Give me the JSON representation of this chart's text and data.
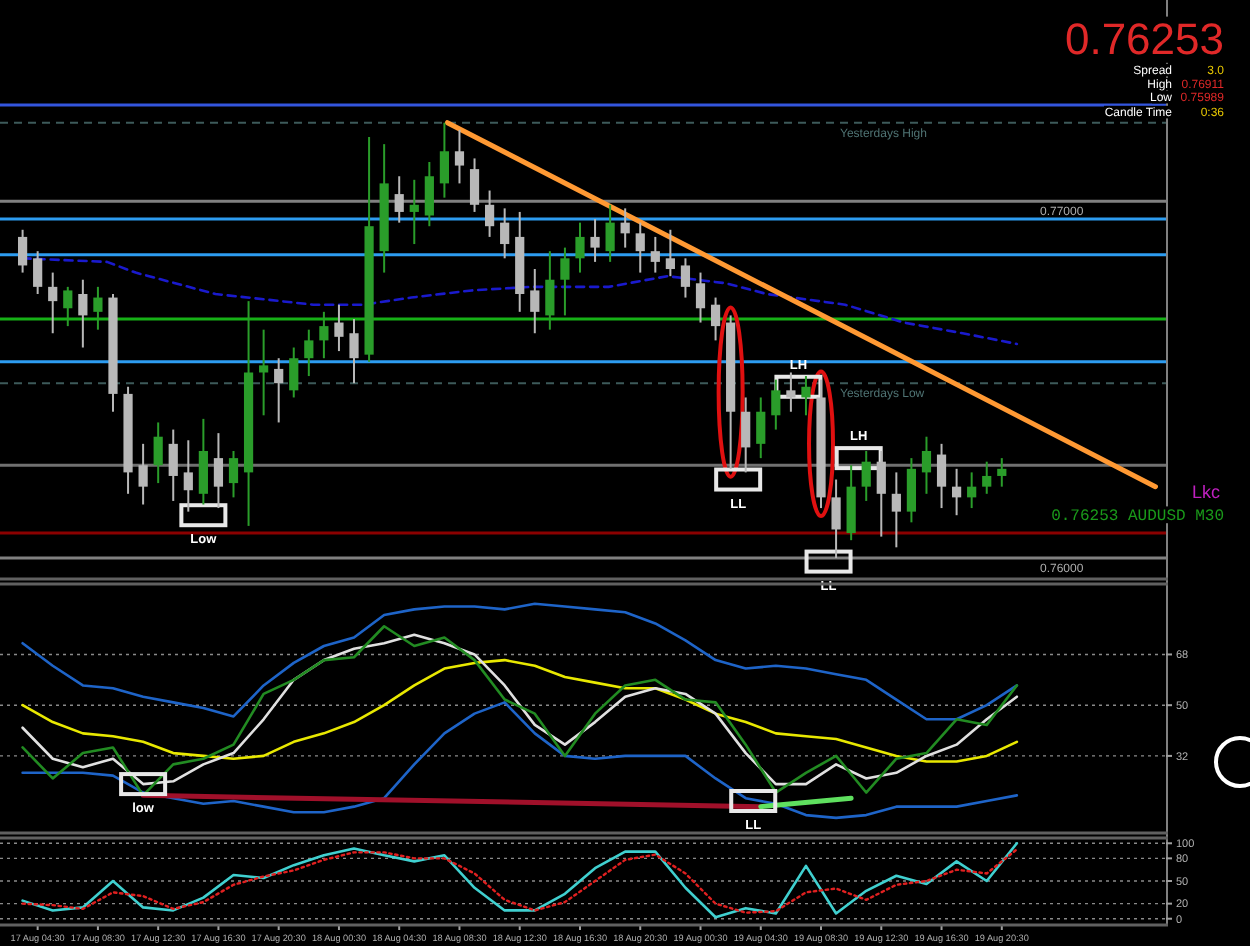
{
  "chart_data": [
    {
      "type": "candlestick",
      "tick_labels": false,
      "xlim": [
        "--08-17T02:00",
        "--08-20T07:24"
      ],
      "ylim": [
        0.75944,
        0.77564
      ],
      "x": [
        "--08-17T03:30",
        "--08-17T04:30",
        "--08-17T05:30",
        "--08-17T06:30",
        "--08-17T07:30",
        "--08-17T08:30",
        "--08-17T09:30",
        "--08-17T10:30",
        "--08-17T11:30",
        "--08-17T12:30",
        "--08-17T13:30",
        "--08-17T14:30",
        "--08-17T15:30",
        "--08-17T16:30",
        "--08-17T17:30",
        "--08-17T18:30",
        "--08-17T19:30",
        "--08-17T20:30",
        "--08-17T21:30",
        "--08-17T22:30",
        "--08-17T23:30",
        "--08-18T00:30",
        "--08-18T01:30",
        "--08-18T02:30",
        "--08-18T03:30",
        "--08-18T04:30",
        "--08-18T05:30",
        "--08-18T06:30",
        "--08-18T07:30",
        "--08-18T08:30",
        "--08-18T09:30",
        "--08-18T10:30",
        "--08-18T11:30",
        "--08-18T12:30",
        "--08-18T13:30",
        "--08-18T14:30",
        "--08-18T15:30",
        "--08-18T16:30",
        "--08-18T17:30",
        "--08-18T18:30",
        "--08-18T19:30",
        "--08-18T20:30",
        "--08-18T21:30",
        "--08-18T22:30",
        "--08-18T23:30",
        "--08-19T00:30",
        "--08-19T01:30",
        "--08-19T02:30",
        "--08-19T03:30",
        "--08-19T04:30",
        "--08-19T05:30",
        "--08-19T06:30",
        "--08-19T07:30",
        "--08-19T08:30",
        "--08-19T09:30",
        "--08-19T10:30",
        "--08-19T11:30",
        "--08-19T12:30",
        "--08-19T13:30",
        "--08-19T14:30",
        "--08-19T15:30",
        "--08-19T16:30",
        "--08-19T17:30",
        "--08-19T18:30",
        "--08-19T19:30",
        "--08-19T20:30"
      ],
      "ohlc": [
        [
          0.769,
          0.7692,
          0.768,
          0.7682
        ],
        [
          0.7684,
          0.7686,
          0.7674,
          0.7676
        ],
        [
          0.7676,
          0.768,
          0.7663,
          0.7672
        ],
        [
          0.767,
          0.7676,
          0.7665,
          0.7675
        ],
        [
          0.7674,
          0.7678,
          0.7659,
          0.7668
        ],
        [
          0.7669,
          0.7676,
          0.7664,
          0.7673
        ],
        [
          0.7673,
          0.7674,
          0.7641,
          0.7646
        ],
        [
          0.7646,
          0.7648,
          0.7618,
          0.7624
        ],
        [
          0.7626,
          0.7632,
          0.7615,
          0.762
        ],
        [
          0.7626,
          0.7638,
          0.7621,
          0.7634
        ],
        [
          0.7632,
          0.7636,
          0.7616,
          0.7623
        ],
        [
          0.7624,
          0.7633,
          0.7613,
          0.7619
        ],
        [
          0.7618,
          0.7639,
          0.7615,
          0.763
        ],
        [
          0.7628,
          0.7635,
          0.7614,
          0.762
        ],
        [
          0.7621,
          0.763,
          0.7617,
          0.7628
        ],
        [
          0.7624,
          0.7672,
          0.7609,
          0.7652
        ],
        [
          0.7652,
          0.7664,
          0.764,
          0.7654
        ],
        [
          0.7653,
          0.7656,
          0.7638,
          0.7649
        ],
        [
          0.7647,
          0.7659,
          0.7645,
          0.7656
        ],
        [
          0.7656,
          0.7664,
          0.7651,
          0.7661
        ],
        [
          0.7661,
          0.7669,
          0.7656,
          0.7665
        ],
        [
          0.7666,
          0.7671,
          0.7658,
          0.7662
        ],
        [
          0.7663,
          0.7667,
          0.7649,
          0.7656
        ],
        [
          0.7657,
          0.7718,
          0.7655,
          0.7693
        ],
        [
          0.7686,
          0.7716,
          0.768,
          0.7705
        ],
        [
          0.7702,
          0.7707,
          0.7694,
          0.7697
        ],
        [
          0.7697,
          0.7706,
          0.7688,
          0.7699
        ],
        [
          0.7696,
          0.7711,
          0.7693,
          0.7707
        ],
        [
          0.7705,
          0.7722,
          0.7701,
          0.7714
        ],
        [
          0.7714,
          0.772,
          0.7705,
          0.771
        ],
        [
          0.7709,
          0.7712,
          0.7697,
          0.7699
        ],
        [
          0.7699,
          0.7703,
          0.769,
          0.7693
        ],
        [
          0.7694,
          0.7698,
          0.7684,
          0.7688
        ],
        [
          0.769,
          0.7697,
          0.7669,
          0.7674
        ],
        [
          0.7675,
          0.7681,
          0.7663,
          0.7669
        ],
        [
          0.7668,
          0.7686,
          0.7664,
          0.7678
        ],
        [
          0.7678,
          0.7687,
          0.7668,
          0.7684
        ],
        [
          0.7684,
          0.7694,
          0.768,
          0.769
        ],
        [
          0.769,
          0.7695,
          0.7683,
          0.7687
        ],
        [
          0.7686,
          0.7699,
          0.7683,
          0.7694
        ],
        [
          0.7694,
          0.7698,
          0.7687,
          0.7691
        ],
        [
          0.7691,
          0.7694,
          0.768,
          0.7686
        ],
        [
          0.7686,
          0.769,
          0.768,
          0.7683
        ],
        [
          0.7684,
          0.7692,
          0.7679,
          0.7681
        ],
        [
          0.7682,
          0.7684,
          0.7673,
          0.7676
        ],
        [
          0.7677,
          0.768,
          0.7666,
          0.767
        ],
        [
          0.7671,
          0.7673,
          0.7661,
          0.7665
        ],
        [
          0.7666,
          0.7668,
          0.7625,
          0.7641
        ],
        [
          0.7641,
          0.7645,
          0.7624,
          0.7631
        ],
        [
          0.7632,
          0.7645,
          0.7628,
          0.7641
        ],
        [
          0.764,
          0.765,
          0.7636,
          0.7647
        ],
        [
          0.7647,
          0.7652,
          0.7641,
          0.7645
        ],
        [
          0.7645,
          0.7651,
          0.764,
          0.7648
        ],
        [
          0.7645,
          0.765,
          0.7614,
          0.7617
        ],
        [
          0.7617,
          0.7622,
          0.76,
          0.7608
        ],
        [
          0.7607,
          0.7626,
          0.7605,
          0.762
        ],
        [
          0.762,
          0.763,
          0.7616,
          0.7627
        ],
        [
          0.7627,
          0.763,
          0.7606,
          0.7618
        ],
        [
          0.7618,
          0.7624,
          0.7603,
          0.7613
        ],
        [
          0.7613,
          0.7628,
          0.761,
          0.7625
        ],
        [
          0.7624,
          0.7634,
          0.7618,
          0.763
        ],
        [
          0.7629,
          0.7632,
          0.7614,
          0.762
        ],
        [
          0.762,
          0.7625,
          0.7612,
          0.7617
        ],
        [
          0.7617,
          0.7624,
          0.7614,
          0.762
        ],
        [
          0.762,
          0.7627,
          0.7618,
          0.7623
        ],
        [
          0.7623,
          0.7628,
          0.762,
          0.7625
        ]
      ],
      "colors": [
        "#b8b8b8",
        "#b8b8b8",
        "#b8b8b8",
        "#2a9d2a",
        "#b8b8b8",
        "#2a9d2a",
        "#b8b8b8",
        "#b8b8b8",
        "#b8b8b8",
        "#2a9d2a",
        "#b8b8b8",
        "#b8b8b8",
        "#2a9d2a",
        "#b8b8b8",
        "#2a9d2a",
        "#2a9d2a",
        "#2a9d2a",
        "#b8b8b8",
        "#2a9d2a",
        "#2a9d2a",
        "#2a9d2a",
        "#b8b8b8",
        "#b8b8b8",
        "#2a9d2a",
        "#2a9d2a",
        "#b8b8b8",
        "#2a9d2a",
        "#2a9d2a",
        "#2a9d2a",
        "#b8b8b8",
        "#b8b8b8",
        "#b8b8b8",
        "#b8b8b8",
        "#b8b8b8",
        "#b8b8b8",
        "#2a9d2a",
        "#2a9d2a",
        "#2a9d2a",
        "#b8b8b8",
        "#2a9d2a",
        "#b8b8b8",
        "#b8b8b8",
        "#b8b8b8",
        "#b8b8b8",
        "#b8b8b8",
        "#b8b8b8",
        "#b8b8b8",
        "#b8b8b8",
        "#b8b8b8",
        "#2a9d2a",
        "#2a9d2a",
        "#b8b8b8",
        "#2a9d2a",
        "#b8b8b8",
        "#b8b8b8",
        "#2a9d2a",
        "#2a9d2a",
        "#b8b8b8",
        "#b8b8b8",
        "#2a9d2a",
        "#2a9d2a",
        "#b8b8b8",
        "#b8b8b8",
        "#2a9d2a",
        "#2a9d2a",
        "#2a9d2a"
      ],
      "series": [
        {
          "type": "line",
          "x": [
            "--08-17T03:30",
            "--08-17T09:06",
            "--08-17T11:00",
            "--08-17T16:18",
            "--08-17T22:48",
            "--08-18T02:06",
            "--08-18T05:18",
            "--08-18T09:18",
            "--08-18T13:12",
            "--08-18T18:24",
            "--08-18T22:18",
            "--08-19T02:12",
            "--08-19T04:54",
            "--08-19T10:06",
            "--08-19T14:00",
            "--08-19T17:54",
            "--08-19T21:30"
          ],
          "values": [
            0.7684,
            0.7683,
            0.768,
            0.7674,
            0.7671,
            0.7671,
            0.7673,
            0.7675,
            0.7676,
            0.7676,
            0.7679,
            0.7677,
            0.7674,
            0.7671,
            0.7666,
            0.7663,
            0.766
          ],
          "color": "#1a1acd",
          "line_style": "dashed"
        },
        {
          "type": "line",
          "x": [
            "--08-18T07:42",
            "--08-20T06:42"
          ],
          "values": [
            0.7722,
            0.762
          ],
          "color": "#ff9933"
        }
      ],
      "ref_lines": [
        {
          "axis": "y",
          "value": 0.7727,
          "color": "#3355dd"
        },
        {
          "axis": "y",
          "value": 0.7722,
          "label": "Yesterdays High",
          "color": "#3d5a5a",
          "line_style": "dashed"
        },
        {
          "axis": "y",
          "value": 0.77,
          "label": "0.77000",
          "color": "#808080"
        },
        {
          "axis": "y",
          "value": 0.7695,
          "color": "#2d9cf0"
        },
        {
          "axis": "y",
          "value": 0.7685,
          "color": "#2d9cf0"
        },
        {
          "axis": "y",
          "value": 0.7667,
          "color": "#16b016"
        },
        {
          "axis": "y",
          "value": 0.7655,
          "color": "#2d9cf0"
        },
        {
          "axis": "y",
          "value": 0.7649,
          "label": "Yesterdays Low",
          "color": "#3d5a5a",
          "line_style": "dashed"
        },
        {
          "axis": "y",
          "value": 0.7626,
          "color": "#707070"
        },
        {
          "axis": "y",
          "value": 0.7607,
          "color": "#8b0000"
        },
        {
          "axis": "y",
          "value": 0.76,
          "label": "0.76000",
          "color": "#808080"
        }
      ],
      "annotations": [
        {
          "text": "Low",
          "x": "--08-17T15:30",
          "y": 0.7612
        },
        {
          "text": "LL",
          "x": "--08-19T03:00",
          "y": 0.7622
        },
        {
          "text": "LH",
          "x": "--08-19T07:00",
          "y": 0.7648
        },
        {
          "text": "LL",
          "x": "--08-19T09:00",
          "y": 0.7599
        },
        {
          "text": "LH",
          "x": "--08-19T11:00",
          "y": 0.7628
        },
        "0.76253",
        "Spread",
        "3.0",
        "High",
        "0.76911",
        "Low",
        "0.75989",
        "Candle Time",
        "0:36",
        "Lkc",
        "0.76253 AUDUSD M30"
      ]
    },
    {
      "type": "line",
      "tick_labels": "y",
      "grid": "y",
      "xlim": [
        "--08-17T02:00",
        "--08-20T07:24"
      ],
      "ylim": [
        5,
        93
      ],
      "yticks": [
        32,
        50,
        68
      ],
      "x": [
        "--08-17T03:30",
        "--08-17T05:30",
        "--08-17T07:30",
        "--08-17T09:30",
        "--08-17T11:30",
        "--08-17T13:30",
        "--08-17T15:30",
        "--08-17T17:30",
        "--08-17T19:30",
        "--08-17T21:30",
        "--08-17T23:30",
        "--08-18T01:30",
        "--08-18T03:30",
        "--08-18T05:30",
        "--08-18T07:30",
        "--08-18T09:30",
        "--08-18T11:30",
        "--08-18T13:30",
        "--08-18T15:30",
        "--08-18T17:30",
        "--08-18T19:30",
        "--08-18T21:30",
        "--08-18T23:30",
        "--08-19T01:30",
        "--08-19T03:30",
        "--08-19T05:30",
        "--08-19T07:30",
        "--08-19T09:30",
        "--08-19T11:30",
        "--08-19T13:30",
        "--08-19T15:30",
        "--08-19T17:30",
        "--08-19T19:30",
        "--08-19T21:30"
      ],
      "series": [
        {
          "color": "#1e64c8",
          "values": [
            72,
            64,
            57,
            56,
            53,
            51,
            49,
            46,
            57,
            65,
            71,
            74,
            82,
            84,
            85,
            85,
            84,
            86,
            85,
            84,
            83,
            79,
            73,
            66,
            63,
            64,
            63,
            61,
            59,
            52,
            45,
            45,
            50,
            57
          ]
        },
        {
          "color": "#1e64c8",
          "values": [
            26,
            26,
            26,
            25,
            19,
            17,
            15,
            16,
            14,
            12,
            12,
            14,
            17,
            29,
            40,
            47,
            51,
            40,
            32,
            31,
            32,
            32,
            32,
            24,
            17,
            15,
            11,
            10,
            11,
            14,
            14,
            14,
            16,
            18
          ]
        },
        {
          "color": "#e8e800",
          "values": [
            50,
            44,
            40,
            39,
            37,
            33,
            32,
            31,
            32,
            37,
            40,
            44,
            50,
            57,
            63,
            65,
            66,
            64,
            60,
            58,
            56,
            56,
            52,
            47,
            44,
            40,
            39,
            38,
            35,
            32,
            30,
            30,
            32,
            37
          ]
        },
        {
          "color": "#e0e0e0",
          "values": [
            42,
            31,
            28,
            31,
            22,
            23,
            29,
            33,
            45,
            59,
            66,
            70,
            72,
            75,
            72,
            68,
            57,
            43,
            36,
            44,
            53,
            56,
            54,
            47,
            33,
            22,
            22,
            29,
            24,
            26,
            32,
            36,
            45,
            53
          ]
        },
        {
          "color": "#228b22",
          "values": [
            35,
            24,
            33,
            35,
            18,
            29,
            31,
            36,
            54,
            59,
            66,
            67,
            78,
            71,
            74,
            66,
            52,
            47,
            32,
            47,
            57,
            59,
            52,
            51,
            36,
            19,
            26,
            32,
            19,
            31,
            33,
            45,
            43,
            57
          ]
        },
        {
          "color": "#a0102a",
          "x": [
            "--08-17T11:30",
            "--08-19T04:30"
          ],
          "values": [
            18,
            14
          ]
        },
        {
          "color": "#5fe05f",
          "x": [
            "--08-19T04:30",
            "--08-19T10:30"
          ],
          "values": [
            14,
            17
          ]
        }
      ],
      "annotations": [
        {
          "text": "low",
          "x": "--08-17T11:30",
          "y": 22
        },
        {
          "text": "LL",
          "x": "--08-19T04:00",
          "y": 16
        }
      ]
    },
    {
      "type": "line",
      "grid": "y",
      "xlim": [
        "--08-17T02:00",
        "--08-20T07:24"
      ],
      "ylim": [
        -7,
        107
      ],
      "yticks": [
        0,
        20,
        50,
        80,
        100
      ],
      "xticks": [
        {
          "value": "--08-17T04:30",
          "label": "17 Aug 04:30"
        },
        {
          "value": "--08-17T08:30",
          "label": "17 Aug 08:30"
        },
        {
          "value": "--08-17T12:30",
          "label": "17 Aug 12:30"
        },
        {
          "value": "--08-17T16:30",
          "label": "17 Aug 16:30"
        },
        {
          "value": "--08-17T20:30",
          "label": "17 Aug 20:30"
        },
        {
          "value": "--08-18T00:30",
          "label": "18 Aug 00:30"
        },
        {
          "value": "--08-18T04:30",
          "label": "18 Aug 04:30"
        },
        {
          "value": "--08-18T08:30",
          "label": "18 Aug 08:30"
        },
        {
          "value": "--08-18T12:30",
          "label": "18 Aug 12:30"
        },
        {
          "value": "--08-18T16:30",
          "label": "18 Aug 16:30"
        },
        {
          "value": "--08-18T20:30",
          "label": "18 Aug 20:30"
        },
        {
          "value": "--08-19T00:30",
          "label": "19 Aug 00:30"
        },
        {
          "value": "--08-19T04:30",
          "label": "19 Aug 04:30"
        },
        {
          "value": "--08-19T08:30",
          "label": "19 Aug 08:30"
        },
        {
          "value": "--08-19T12:30",
          "label": "19 Aug 12:30"
        },
        {
          "value": "--08-19T16:30",
          "label": "19 Aug 16:30"
        },
        {
          "value": "--08-19T20:30",
          "label": "19 Aug 20:30"
        }
      ],
      "x": [
        "--08-17T03:30",
        "--08-17T05:30",
        "--08-17T07:30",
        "--08-17T09:30",
        "--08-17T11:30",
        "--08-17T13:30",
        "--08-17T15:30",
        "--08-17T17:30",
        "--08-17T19:30",
        "--08-17T21:30",
        "--08-17T23:30",
        "--08-18T01:30",
        "--08-18T03:30",
        "--08-18T05:30",
        "--08-18T07:30",
        "--08-18T09:30",
        "--08-18T11:30",
        "--08-18T13:30",
        "--08-18T15:30",
        "--08-18T17:30",
        "--08-18T19:30",
        "--08-18T21:30",
        "--08-18T23:30",
        "--08-19T01:30",
        "--08-19T03:30",
        "--08-19T05:30",
        "--08-19T07:30",
        "--08-19T09:30",
        "--08-19T11:30",
        "--08-19T13:30",
        "--08-19T15:30",
        "--08-19T17:30",
        "--08-19T19:30",
        "--08-19T21:30"
      ],
      "series": [
        {
          "color": "#40d0d0",
          "values": [
            24,
            11,
            15,
            50,
            15,
            11,
            28,
            58,
            54,
            71,
            84,
            93,
            84,
            76,
            84,
            41,
            11,
            11,
            33,
            67,
            89,
            89,
            41,
            2,
            14,
            7,
            70,
            7,
            37,
            57,
            46,
            76,
            50,
            100
          ]
        },
        {
          "color": "#e02020",
          "line_style": "dotted",
          "values": [
            20,
            18,
            13,
            35,
            30,
            13,
            22,
            45,
            56,
            64,
            78,
            88,
            88,
            80,
            80,
            60,
            25,
            11,
            22,
            50,
            78,
            85,
            60,
            20,
            8,
            10,
            35,
            40,
            25,
            45,
            50,
            65,
            60,
            92
          ]
        }
      ]
    }
  ]
}
